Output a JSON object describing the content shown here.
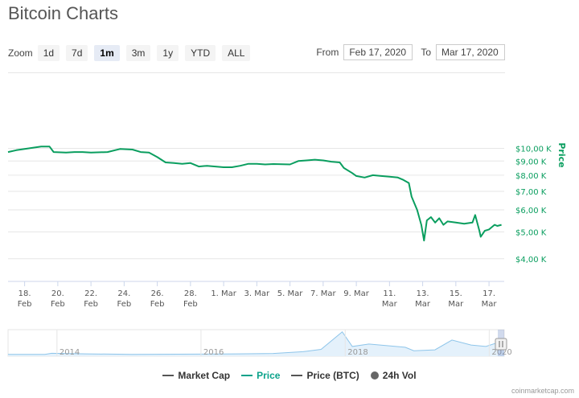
{
  "title": "Bitcoin Charts",
  "zoom": {
    "label": "Zoom",
    "buttons": [
      "1d",
      "7d",
      "1m",
      "3m",
      "1y",
      "YTD",
      "ALL"
    ],
    "active": "1m"
  },
  "range": {
    "from_label": "From",
    "from_value": "Feb 17, 2020",
    "to_label": "To",
    "to_value": "Mar 17, 2020"
  },
  "legend": [
    {
      "name": "Market Cap",
      "color": "#555555",
      "marker": "line"
    },
    {
      "name": "Price",
      "color": "#0aa28a",
      "marker": "line"
    },
    {
      "name": "Price (BTC)",
      "color": "#555555",
      "marker": "line"
    },
    {
      "name": "24h Vol",
      "color": "#666666",
      "marker": "dot"
    }
  ],
  "credits": "coinmarketcap.com",
  "colors": {
    "price_line": "#0a9e5f",
    "navigator_line": "#8ec5ea",
    "navigator_fill": "#e4f1fb"
  },
  "chart_data": {
    "type": "line",
    "title": "",
    "xlabel": "",
    "ylabel": "Price",
    "y_axis_position": "right",
    "y_scale": "log",
    "x_range": [
      "2020-02-17",
      "2020-03-17"
    ],
    "y_ticks": [
      {
        "value": 10000,
        "label": "$10,00 K"
      },
      {
        "value": 9000,
        "label": "$9,00 K"
      },
      {
        "value": 8000,
        "label": "$8,00 K"
      },
      {
        "value": 7000,
        "label": "$7,00 K"
      },
      {
        "value": 6000,
        "label": "$6,00 K"
      },
      {
        "value": 5000,
        "label": "$5,00 K"
      },
      {
        "value": 4000,
        "label": "$4,00 K"
      }
    ],
    "x_ticks": [
      {
        "date": "2020-02-18",
        "line1": "18.",
        "line2": "Feb"
      },
      {
        "date": "2020-02-20",
        "line1": "20.",
        "line2": "Feb"
      },
      {
        "date": "2020-02-22",
        "line1": "22.",
        "line2": "Feb"
      },
      {
        "date": "2020-02-24",
        "line1": "24.",
        "line2": "Feb"
      },
      {
        "date": "2020-02-26",
        "line1": "26.",
        "line2": "Feb"
      },
      {
        "date": "2020-02-28",
        "line1": "28.",
        "line2": "Feb"
      },
      {
        "date": "2020-03-01",
        "line1": "1. Mar",
        "line2": ""
      },
      {
        "date": "2020-03-03",
        "line1": "3. Mar",
        "line2": ""
      },
      {
        "date": "2020-03-05",
        "line1": "5. Mar",
        "line2": ""
      },
      {
        "date": "2020-03-07",
        "line1": "7. Mar",
        "line2": ""
      },
      {
        "date": "2020-03-09",
        "line1": "9. Mar",
        "line2": ""
      },
      {
        "date": "2020-03-11",
        "line1": "11.",
        "line2": "Mar"
      },
      {
        "date": "2020-03-13",
        "line1": "13.",
        "line2": "Mar"
      },
      {
        "date": "2020-03-15",
        "line1": "15.",
        "line2": "Mar"
      },
      {
        "date": "2020-03-17",
        "line1": "17.",
        "line2": "Mar"
      }
    ],
    "series": [
      {
        "name": "Price",
        "points": [
          [
            "2020-02-17T00:00",
            9700
          ],
          [
            "2020-02-17T12:00",
            9850
          ],
          [
            "2020-02-18T06:00",
            10000
          ],
          [
            "2020-02-19T00:00",
            10150
          ],
          [
            "2020-02-19T12:00",
            10150
          ],
          [
            "2020-02-19T18:00",
            9700
          ],
          [
            "2020-02-20T12:00",
            9650
          ],
          [
            "2020-02-21T00:00",
            9700
          ],
          [
            "2020-02-21T12:00",
            9700
          ],
          [
            "2020-02-22T00:00",
            9650
          ],
          [
            "2020-02-23T00:00",
            9700
          ],
          [
            "2020-02-23T18:00",
            9950
          ],
          [
            "2020-02-24T12:00",
            9900
          ],
          [
            "2020-02-25T00:00",
            9700
          ],
          [
            "2020-02-25T12:00",
            9650
          ],
          [
            "2020-02-26T00:00",
            9300
          ],
          [
            "2020-02-26T12:00",
            8900
          ],
          [
            "2020-02-27T00:00",
            8850
          ],
          [
            "2020-02-27T12:00",
            8800
          ],
          [
            "2020-02-28T00:00",
            8850
          ],
          [
            "2020-02-28T12:00",
            8600
          ],
          [
            "2020-02-29T00:00",
            8650
          ],
          [
            "2020-02-29T12:00",
            8600
          ],
          [
            "2020-03-01T00:00",
            8550
          ],
          [
            "2020-03-01T12:00",
            8550
          ],
          [
            "2020-03-02T00:00",
            8650
          ],
          [
            "2020-03-02T12:00",
            8800
          ],
          [
            "2020-03-03T00:00",
            8800
          ],
          [
            "2020-03-03T12:00",
            8750
          ],
          [
            "2020-03-04T00:00",
            8780
          ],
          [
            "2020-03-05T00:00",
            8750
          ],
          [
            "2020-03-05T12:00",
            9000
          ],
          [
            "2020-03-06T00:00",
            9050
          ],
          [
            "2020-03-06T12:00",
            9100
          ],
          [
            "2020-03-07T00:00",
            9050
          ],
          [
            "2020-03-07T12:00",
            8950
          ],
          [
            "2020-03-08T00:00",
            8900
          ],
          [
            "2020-03-08T06:00",
            8500
          ],
          [
            "2020-03-08T18:00",
            8150
          ],
          [
            "2020-03-09T00:00",
            7950
          ],
          [
            "2020-03-09T12:00",
            7850
          ],
          [
            "2020-03-10T00:00",
            8000
          ],
          [
            "2020-03-10T12:00",
            7950
          ],
          [
            "2020-03-11T00:00",
            7900
          ],
          [
            "2020-03-11T12:00",
            7850
          ],
          [
            "2020-03-11T20:00",
            7700
          ],
          [
            "2020-03-12T04:00",
            7500
          ],
          [
            "2020-03-12T08:00",
            6700
          ],
          [
            "2020-03-12T16:00",
            6000
          ],
          [
            "2020-03-12T22:00",
            5300
          ],
          [
            "2020-03-13T02:00",
            4650
          ],
          [
            "2020-03-13T06:00",
            5500
          ],
          [
            "2020-03-13T12:00",
            5650
          ],
          [
            "2020-03-13T18:00",
            5400
          ],
          [
            "2020-03-14T00:00",
            5600
          ],
          [
            "2020-03-14T06:00",
            5300
          ],
          [
            "2020-03-14T12:00",
            5450
          ],
          [
            "2020-03-15T00:00",
            5400
          ],
          [
            "2020-03-15T12:00",
            5350
          ],
          [
            "2020-03-16T00:00",
            5400
          ],
          [
            "2020-03-16T04:00",
            5750
          ],
          [
            "2020-03-16T10:00",
            5050
          ],
          [
            "2020-03-16T12:00",
            4800
          ],
          [
            "2020-03-16T18:00",
            5050
          ],
          [
            "2020-03-17T00:00",
            5100
          ],
          [
            "2020-03-17T08:00",
            5300
          ],
          [
            "2020-03-17T12:00",
            5250
          ],
          [
            "2020-03-17T18:00",
            5300
          ]
        ]
      }
    ],
    "navigator": {
      "labels": [
        "2014",
        "2016",
        "2018",
        "2020"
      ],
      "series_name": "Price (all-time)",
      "points": [
        [
          "2013-04-28",
          130
        ],
        [
          "2013-11-01",
          200
        ],
        [
          "2013-12-04",
          1100
        ],
        [
          "2014-06-01",
          600
        ],
        [
          "2015-01-15",
          200
        ],
        [
          "2016-01-01",
          430
        ],
        [
          "2016-07-01",
          650
        ],
        [
          "2017-01-01",
          1000
        ],
        [
          "2017-06-01",
          2500
        ],
        [
          "2017-09-01",
          4500
        ],
        [
          "2017-12-17",
          19500
        ],
        [
          "2018-02-06",
          7000
        ],
        [
          "2018-05-01",
          9000
        ],
        [
          "2018-11-01",
          6300
        ],
        [
          "2018-12-15",
          3300
        ],
        [
          "2019-04-01",
          4100
        ],
        [
          "2019-06-26",
          12500
        ],
        [
          "2019-10-01",
          8200
        ],
        [
          "2019-12-15",
          7000
        ],
        [
          "2020-02-12",
          10200
        ],
        [
          "2020-03-17",
          5300
        ]
      ]
    }
  }
}
